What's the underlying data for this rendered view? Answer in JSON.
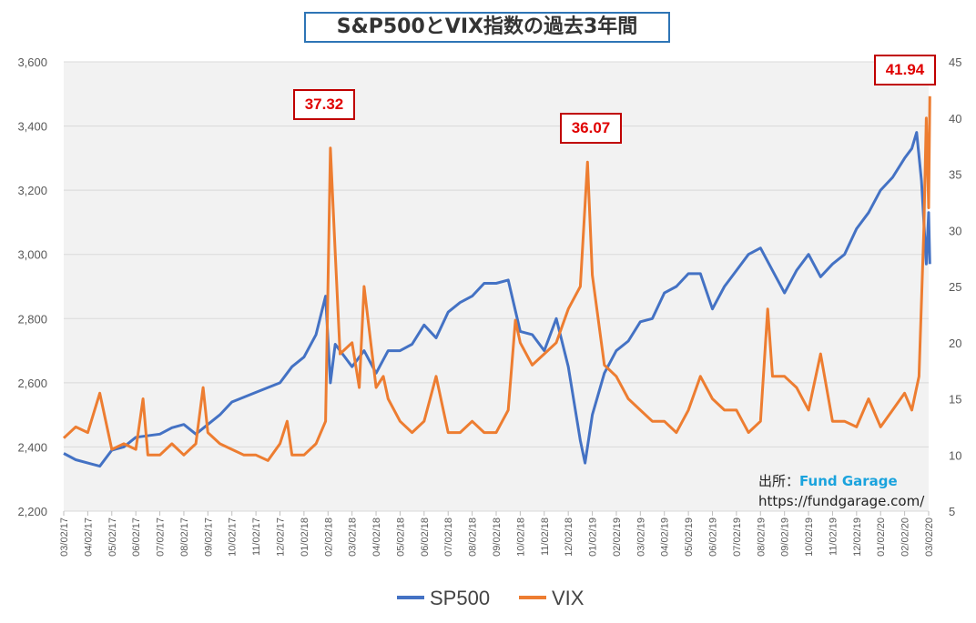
{
  "title": "S&P500とVIX指数の過去3年間",
  "callouts": [
    "37.32",
    "36.07",
    "41.94"
  ],
  "source": {
    "label": "出所：",
    "brand": "Fund Garage",
    "url": "https://fundgarage.com/"
  },
  "chart_data": {
    "type": "line",
    "title": "S&P500とVIX指数の過去3年間",
    "x_unit": "months since 03/02/17",
    "x_tick_labels": [
      "03/02/17",
      "04/02/17",
      "05/02/17",
      "06/02/17",
      "07/02/17",
      "08/02/17",
      "09/02/17",
      "10/02/17",
      "11/02/17",
      "12/02/17",
      "01/02/18",
      "02/02/18",
      "03/02/18",
      "04/02/18",
      "05/02/18",
      "06/02/18",
      "07/02/18",
      "08/02/18",
      "09/02/18",
      "10/02/18",
      "11/02/18",
      "12/02/18",
      "01/02/19",
      "02/02/19",
      "03/02/19",
      "04/02/19",
      "05/02/19",
      "06/02/19",
      "07/02/19",
      "08/02/19",
      "09/02/19",
      "10/02/19",
      "11/02/19",
      "12/02/19",
      "01/02/20",
      "02/02/20",
      "03/02/20"
    ],
    "y_left": {
      "range": [
        2200,
        3600
      ],
      "step": 200,
      "tick_labels": [
        "2,200",
        "2,400",
        "2,600",
        "2,800",
        "3,000",
        "3,200",
        "3,400",
        "3,600"
      ]
    },
    "y_right": {
      "range": [
        5,
        45
      ],
      "step": 5,
      "tick_labels": [
        "5",
        "10",
        "15",
        "20",
        "25",
        "30",
        "35",
        "40",
        "45"
      ]
    },
    "grid": true,
    "legend": "bottom",
    "series": [
      {
        "name": "SP500",
        "axis": "left",
        "color": "#4472c4",
        "x": [
          0,
          0.5,
          1,
          1.5,
          2,
          2.5,
          3,
          4,
          4.5,
          5,
          5.5,
          6,
          6.5,
          7,
          8,
          9,
          9.5,
          10,
          10.5,
          10.9,
          11.1,
          11.3,
          12,
          12.5,
          13,
          13.5,
          14,
          14.5,
          15,
          15.5,
          16,
          16.5,
          17,
          17.5,
          18,
          18.5,
          19,
          19.5,
          20,
          20.5,
          21,
          21.5,
          21.7,
          22,
          22.5,
          23,
          23.5,
          24,
          24.5,
          25,
          25.5,
          26,
          26.5,
          27,
          27.5,
          28,
          28.5,
          29,
          29.5,
          30,
          30.5,
          31,
          31.5,
          32,
          32.5,
          33,
          33.5,
          34,
          34.5,
          35,
          35.3,
          35.5,
          35.7,
          35.9,
          36,
          36.05
        ],
        "y": [
          2380,
          2360,
          2350,
          2340,
          2390,
          2400,
          2430,
          2440,
          2460,
          2470,
          2440,
          2470,
          2500,
          2540,
          2570,
          2600,
          2650,
          2680,
          2750,
          2870,
          2600,
          2720,
          2650,
          2700,
          2630,
          2700,
          2700,
          2720,
          2780,
          2740,
          2820,
          2850,
          2870,
          2910,
          2910,
          2920,
          2760,
          2750,
          2700,
          2800,
          2650,
          2420,
          2350,
          2500,
          2630,
          2700,
          2730,
          2790,
          2800,
          2880,
          2900,
          2940,
          2940,
          2830,
          2900,
          2950,
          3000,
          3020,
          2950,
          2880,
          2950,
          3000,
          2930,
          2970,
          3000,
          3080,
          3130,
          3200,
          3240,
          3300,
          3330,
          3380,
          3230,
          2970,
          3130,
          2970
        ]
      },
      {
        "name": "VIX",
        "axis": "right",
        "color": "#ed7d31",
        "x": [
          0,
          0.5,
          1,
          1.5,
          2,
          2.5,
          3,
          3.3,
          3.5,
          4,
          4.5,
          5,
          5.5,
          5.8,
          6,
          6.5,
          7,
          7.5,
          8,
          8.5,
          9,
          9.3,
          9.5,
          10,
          10.5,
          10.9,
          11.1,
          11.3,
          11.5,
          12,
          12.3,
          12.5,
          13,
          13.3,
          13.5,
          14,
          14.5,
          15,
          15.5,
          16,
          16.5,
          17,
          17.5,
          18,
          18.5,
          18.8,
          19,
          19.5,
          20,
          20.5,
          21,
          21.5,
          21.8,
          22,
          22.5,
          23,
          23.5,
          24,
          24.5,
          25,
          25.5,
          26,
          26.5,
          27,
          27.5,
          28,
          28.5,
          29,
          29.3,
          29.5,
          30,
          30.5,
          31,
          31.5,
          32,
          32.5,
          33,
          33.5,
          34,
          34.5,
          35,
          35.3,
          35.6,
          35.8,
          35.9,
          36,
          36.05
        ],
        "y": [
          11.5,
          12.5,
          12,
          15.5,
          10.5,
          11,
          10.5,
          15,
          10,
          10,
          11,
          10,
          11,
          16,
          12,
          11,
          10.5,
          10,
          10,
          9.5,
          11,
          13,
          10,
          10,
          11,
          13,
          37.32,
          28,
          19,
          20,
          16,
          25,
          16,
          17,
          15,
          13,
          12,
          13,
          17,
          12,
          12,
          13,
          12,
          12,
          14,
          22,
          20,
          18,
          19,
          20,
          23,
          25,
          36.07,
          26,
          18,
          17,
          15,
          14,
          13,
          13,
          12,
          14,
          17,
          15,
          14,
          14,
          12,
          13,
          23,
          17,
          17,
          16,
          14,
          19,
          13,
          13,
          12.5,
          15,
          12.5,
          14,
          15.5,
          14,
          17,
          30,
          40,
          32,
          41.94
        ]
      }
    ]
  }
}
